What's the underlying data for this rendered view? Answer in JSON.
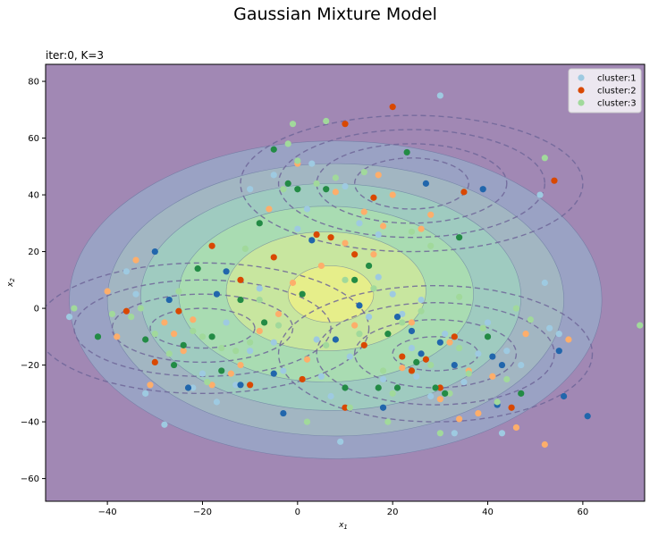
{
  "figure": {
    "suptitle": "Gaussian Mixture Model",
    "axes_title": "iter:0, K=3"
  },
  "colors": {
    "background": "#a188b4",
    "filled_contours": [
      "#9aa2c4",
      "#a2b6c2",
      "#9fcbc0",
      "#a9dcb2",
      "#c8e69f",
      "#e6ee8a"
    ],
    "dashed_contour": "#6f6699",
    "cluster_1_light": "#9ecae1",
    "cluster_1_dark": "#2166ac",
    "cluster_2_light": "#fdae6b",
    "cluster_2_dark": "#d94801",
    "cluster_3_light": "#a1d99b",
    "cluster_3_dark": "#238b45"
  },
  "chart_data": {
    "type": "scatter",
    "title": "iter:0, K=3",
    "xlabel": "x1",
    "ylabel": "x2",
    "xlim": [
      -53,
      73
    ],
    "ylim": [
      -68,
      86
    ],
    "xticks": [
      -40,
      -20,
      0,
      20,
      40,
      60
    ],
    "yticks": [
      -60,
      -40,
      -20,
      0,
      20,
      40,
      60,
      80
    ],
    "xtick_labels": [
      "−40",
      "−20",
      "0",
      "20",
      "40",
      "60"
    ],
    "ytick_labels": [
      "−60",
      "−40",
      "−20",
      "0",
      "20",
      "40",
      "60",
      "80"
    ],
    "grid": false,
    "legend_position": "top-right",
    "filled_contour_ellipses": [
      {
        "cx": 8,
        "cy": 3,
        "rx": 56,
        "ry": 56
      },
      {
        "cx": 8,
        "cy": 3,
        "rx": 48,
        "ry": 48
      },
      {
        "cx": 7,
        "cy": 4,
        "rx": 40,
        "ry": 40
      },
      {
        "cx": 6,
        "cy": 5,
        "rx": 31,
        "ry": 31
      },
      {
        "cx": 6,
        "cy": 6,
        "rx": 21,
        "ry": 21
      },
      {
        "cx": 7,
        "cy": 5,
        "rx": 9,
        "ry": 10
      }
    ],
    "component_contour_sets": [
      {
        "component": "cluster:1",
        "cx": 24,
        "cy": 44,
        "radii": [
          [
            36,
            24
          ],
          [
            28,
            19
          ],
          [
            20,
            14
          ],
          [
            12,
            9
          ]
        ]
      },
      {
        "component": "cluster:2",
        "cx": -20,
        "cy": -7,
        "radii": [
          [
            35,
            23
          ],
          [
            27,
            17
          ],
          [
            19,
            12
          ],
          [
            11,
            7
          ]
        ]
      },
      {
        "component": "cluster:3",
        "cx": 29,
        "cy": -16,
        "radii": [
          [
            33,
            24
          ],
          [
            25,
            18
          ],
          [
            17,
            12
          ],
          [
            9,
            6
          ]
        ]
      }
    ],
    "series": [
      {
        "name": "cluster:1",
        "marker": "light",
        "points": [
          [
            -48,
            -3
          ],
          [
            -36,
            13
          ],
          [
            -34,
            5
          ],
          [
            -32,
            -30
          ],
          [
            -28,
            -41
          ],
          [
            -26,
            -20
          ],
          [
            -22,
            -28
          ],
          [
            -20,
            -23
          ],
          [
            -17,
            -33
          ],
          [
            -13,
            -27
          ],
          [
            -10,
            -15
          ],
          [
            -8,
            7
          ],
          [
            -5,
            -12
          ],
          [
            -3,
            -22
          ],
          [
            0,
            28
          ],
          [
            2,
            35
          ],
          [
            4,
            -11
          ],
          [
            5,
            -24
          ],
          [
            7,
            -31
          ],
          [
            9,
            -47
          ],
          [
            11,
            -17
          ],
          [
            13,
            30
          ],
          [
            15,
            -3
          ],
          [
            17,
            11
          ],
          [
            18,
            -25
          ],
          [
            20,
            5
          ],
          [
            22,
            -2
          ],
          [
            24,
            -14
          ],
          [
            25,
            -24
          ],
          [
            26,
            3
          ],
          [
            28,
            -31
          ],
          [
            30,
            75
          ],
          [
            31,
            -9
          ],
          [
            33,
            -44
          ],
          [
            35,
            -26
          ],
          [
            38,
            -16
          ],
          [
            40,
            -5
          ],
          [
            43,
            -44
          ],
          [
            44,
            -15
          ],
          [
            47,
            -20
          ],
          [
            51,
            40
          ],
          [
            52,
            9
          ],
          [
            53,
            -7
          ],
          [
            55,
            -9
          ],
          [
            -10,
            42
          ],
          [
            -5,
            47
          ],
          [
            3,
            51
          ],
          [
            10,
            43
          ],
          [
            17,
            26
          ],
          [
            -15,
            -5
          ]
        ]
      },
      {
        "name": "cluster:1",
        "marker": "dark",
        "points": [
          [
            -30,
            20
          ],
          [
            -27,
            3
          ],
          [
            -23,
            -28
          ],
          [
            -17,
            5
          ],
          [
            -15,
            13
          ],
          [
            -5,
            -23
          ],
          [
            -3,
            -37
          ],
          [
            8,
            -11
          ],
          [
            13,
            1
          ],
          [
            18,
            -35
          ],
          [
            21,
            -3
          ],
          [
            24,
            -8
          ],
          [
            26,
            -16
          ],
          [
            27,
            44
          ],
          [
            30,
            -12
          ],
          [
            33,
            -20
          ],
          [
            39,
            42
          ],
          [
            41,
            -17
          ],
          [
            42,
            -34
          ],
          [
            43,
            -20
          ],
          [
            55,
            -15
          ],
          [
            56,
            -31
          ],
          [
            61,
            -38
          ],
          [
            -12,
            -27
          ],
          [
            3,
            24
          ]
        ]
      },
      {
        "name": "cluster:2",
        "marker": "light",
        "points": [
          [
            -40,
            6
          ],
          [
            -38,
            -10
          ],
          [
            -34,
            17
          ],
          [
            -31,
            -27
          ],
          [
            -28,
            -5
          ],
          [
            -26,
            -9
          ],
          [
            -24,
            -15
          ],
          [
            -22,
            -4
          ],
          [
            -18,
            -27
          ],
          [
            -14,
            -23
          ],
          [
            -12,
            -20
          ],
          [
            -8,
            -8
          ],
          [
            -4,
            -2
          ],
          [
            -1,
            9
          ],
          [
            2,
            -18
          ],
          [
            5,
            15
          ],
          [
            8,
            41
          ],
          [
            10,
            23
          ],
          [
            12,
            -6
          ],
          [
            14,
            34
          ],
          [
            16,
            19
          ],
          [
            18,
            29
          ],
          [
            20,
            40
          ],
          [
            22,
            -21
          ],
          [
            24,
            -5
          ],
          [
            26,
            28
          ],
          [
            28,
            33
          ],
          [
            30,
            -32
          ],
          [
            32,
            -12
          ],
          [
            34,
            -39
          ],
          [
            36,
            -22
          ],
          [
            38,
            -37
          ],
          [
            41,
            -24
          ],
          [
            46,
            -42
          ],
          [
            48,
            -9
          ],
          [
            52,
            -48
          ],
          [
            57,
            -11
          ],
          [
            -6,
            35
          ],
          [
            0,
            51
          ],
          [
            17,
            47
          ]
        ]
      },
      {
        "name": "cluster:2",
        "marker": "dark",
        "points": [
          [
            -36,
            -1
          ],
          [
            -30,
            -19
          ],
          [
            -25,
            -1
          ],
          [
            -18,
            22
          ],
          [
            -12,
            10
          ],
          [
            -10,
            -27
          ],
          [
            1,
            -25
          ],
          [
            4,
            26
          ],
          [
            7,
            25
          ],
          [
            10,
            -35
          ],
          [
            12,
            19
          ],
          [
            14,
            -13
          ],
          [
            16,
            39
          ],
          [
            20,
            71
          ],
          [
            22,
            -17
          ],
          [
            24,
            -22
          ],
          [
            27,
            -18
          ],
          [
            30,
            -28
          ],
          [
            33,
            -10
          ],
          [
            35,
            41
          ],
          [
            45,
            -35
          ],
          [
            54,
            45
          ],
          [
            10,
            65
          ],
          [
            -5,
            18
          ]
        ]
      },
      {
        "name": "cluster:3",
        "marker": "light",
        "points": [
          [
            -47,
            0
          ],
          [
            -39,
            -2
          ],
          [
            -35,
            -3
          ],
          [
            -33,
            0
          ],
          [
            -30,
            -9
          ],
          [
            -27,
            -16
          ],
          [
            -25,
            6
          ],
          [
            -22,
            -8
          ],
          [
            -20,
            -10
          ],
          [
            -16,
            -14
          ],
          [
            -13,
            -15
          ],
          [
            -10,
            -12
          ],
          [
            -8,
            3
          ],
          [
            -4,
            -6
          ],
          [
            -2,
            58
          ],
          [
            0,
            52
          ],
          [
            2,
            -40
          ],
          [
            4,
            44
          ],
          [
            6,
            -13
          ],
          [
            8,
            46
          ],
          [
            11,
            -35
          ],
          [
            13,
            -9
          ],
          [
            16,
            7
          ],
          [
            18,
            -22
          ],
          [
            20,
            -30
          ],
          [
            22,
            -5
          ],
          [
            26,
            -1
          ],
          [
            28,
            -20
          ],
          [
            30,
            -44
          ],
          [
            32,
            -30
          ],
          [
            34,
            -14
          ],
          [
            36,
            -23
          ],
          [
            39,
            -7
          ],
          [
            42,
            -33
          ],
          [
            44,
            -25
          ],
          [
            46,
            0
          ],
          [
            49,
            -4
          ],
          [
            52,
            53
          ],
          [
            72,
            -6
          ],
          [
            -11,
            21
          ],
          [
            -1,
            65
          ],
          [
            6,
            66
          ],
          [
            14,
            48
          ],
          [
            19,
            -40
          ],
          [
            24,
            27
          ],
          [
            34,
            4
          ],
          [
            -3,
            42
          ],
          [
            10,
            10
          ],
          [
            28,
            22
          ],
          [
            -19,
            -26
          ]
        ]
      },
      {
        "name": "cluster:3",
        "marker": "dark",
        "points": [
          [
            -42,
            -10
          ],
          [
            -32,
            -11
          ],
          [
            -24,
            -13
          ],
          [
            -21,
            14
          ],
          [
            -18,
            -10
          ],
          [
            -16,
            -22
          ],
          [
            -12,
            3
          ],
          [
            -8,
            30
          ],
          [
            -5,
            56
          ],
          [
            -2,
            44
          ],
          [
            0,
            42
          ],
          [
            1,
            5
          ],
          [
            6,
            42
          ],
          [
            10,
            -28
          ],
          [
            12,
            10
          ],
          [
            17,
            -28
          ],
          [
            19,
            -9
          ],
          [
            21,
            -28
          ],
          [
            23,
            55
          ],
          [
            25,
            -19
          ],
          [
            29,
            -28
          ],
          [
            31,
            -30
          ],
          [
            34,
            25
          ],
          [
            40,
            -10
          ],
          [
            47,
            -30
          ],
          [
            -26,
            -20
          ],
          [
            -7,
            -5
          ],
          [
            15,
            15
          ]
        ]
      }
    ],
    "legend": [
      "cluster:1",
      "cluster:2",
      "cluster:3"
    ]
  }
}
